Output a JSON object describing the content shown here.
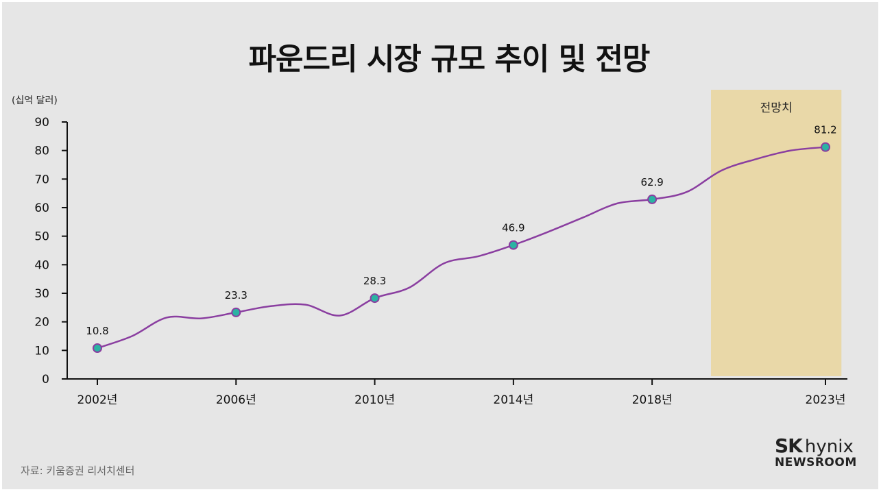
{
  "title": "파운드리 시장 규모 추이 및 전망",
  "unit_label": "(십억 달러)",
  "source": "자료: 키움증권 리서치센터",
  "logo": {
    "brand": "SK",
    "brand2": "hynix",
    "sub": "NEWSROOM"
  },
  "colors": {
    "background": "#e6e6e6",
    "line": "#8a3ea0",
    "marker_fill": "#2bb3a3",
    "marker_stroke": "#8a3ea0",
    "forecast_band": "#e9d8a8",
    "axis": "#111111"
  },
  "chart_data": {
    "type": "line",
    "title": "파운드리 시장 규모 추이 및 전망",
    "ylabel": "(십억 달러)",
    "ylim": [
      0,
      90
    ],
    "yticks": [
      "0",
      "10",
      "20",
      "30",
      "40",
      "50",
      "60",
      "70",
      "80",
      "90"
    ],
    "x_tick_labels": [
      "2002년",
      "2006년",
      "2010년",
      "2014년",
      "2018년",
      "2023년"
    ],
    "forecast_label": "전망치",
    "forecast_range": [
      2019.5,
      2023.5
    ],
    "points": [
      {
        "x": 2002,
        "y": 10.8,
        "label": "10.8"
      },
      {
        "x": 2006,
        "y": 23.3,
        "label": "23.3"
      },
      {
        "x": 2010,
        "y": 28.3,
        "label": "28.3"
      },
      {
        "x": 2014,
        "y": 46.9,
        "label": "46.9"
      },
      {
        "x": 2018,
        "y": 62.9,
        "label": "62.9"
      },
      {
        "x": 2023,
        "y": 81.2,
        "label": "81.2"
      }
    ],
    "curve": [
      {
        "x": 2002,
        "y": 10.8
      },
      {
        "x": 2003,
        "y": 15.0
      },
      {
        "x": 2004,
        "y": 21.5
      },
      {
        "x": 2005,
        "y": 21.2
      },
      {
        "x": 2006,
        "y": 23.3
      },
      {
        "x": 2007,
        "y": 25.5
      },
      {
        "x": 2008,
        "y": 26.0
      },
      {
        "x": 2009,
        "y": 22.2
      },
      {
        "x": 2010,
        "y": 28.3
      },
      {
        "x": 2011,
        "y": 32.0
      },
      {
        "x": 2012,
        "y": 40.5
      },
      {
        "x": 2013,
        "y": 43.0
      },
      {
        "x": 2014,
        "y": 46.9
      },
      {
        "x": 2015,
        "y": 51.5
      },
      {
        "x": 2016,
        "y": 56.5
      },
      {
        "x": 2017,
        "y": 61.5
      },
      {
        "x": 2018,
        "y": 62.9
      },
      {
        "x": 2019,
        "y": 65.5
      },
      {
        "x": 2020,
        "y": 73.0
      },
      {
        "x": 2021,
        "y": 77.0
      },
      {
        "x": 2022,
        "y": 80.0
      },
      {
        "x": 2023,
        "y": 81.2
      }
    ],
    "grid": false
  }
}
